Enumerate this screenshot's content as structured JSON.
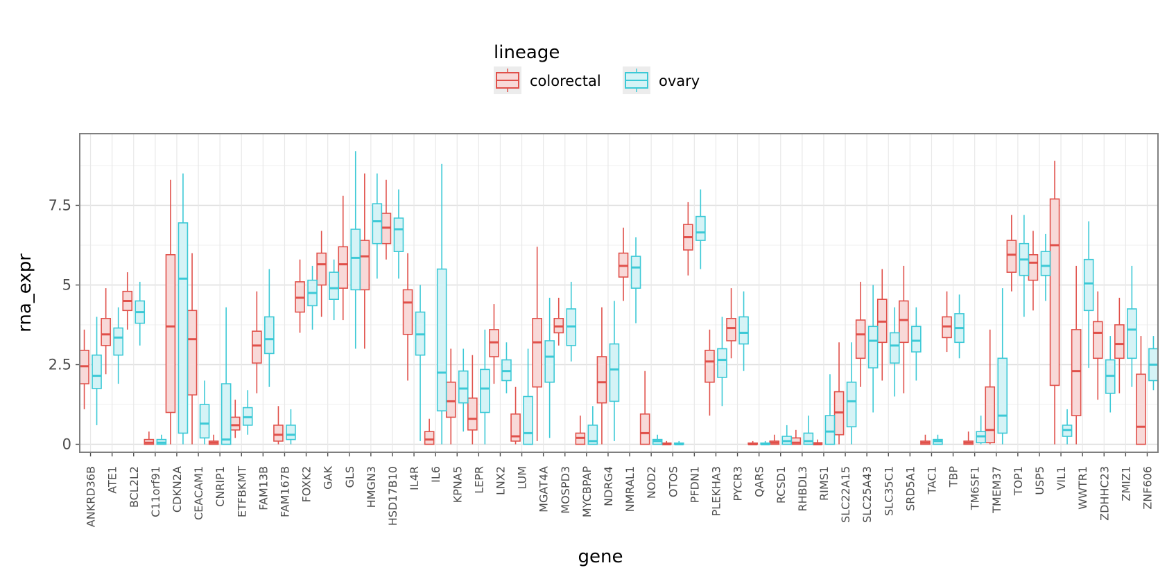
{
  "chart_data": {
    "type": "boxplot",
    "xlabel": "gene",
    "ylabel": "rna_expr",
    "ylim": [
      -0.25,
      9.75
    ],
    "yticks": [
      0,
      2.5,
      5,
      7.5
    ],
    "ytick_labels": [
      "0",
      "2.5",
      "5",
      "7.5"
    ],
    "grid": true,
    "legend_position": "top",
    "legend": {
      "title": "lineage",
      "items": [
        {
          "label": "colorectal",
          "color": "#e0504a"
        },
        {
          "label": "ovary",
          "color": "#3cc9d6"
        }
      ]
    },
    "categories": [
      "ANKRD36B",
      "ATE1",
      "BCL2L2",
      "C11orf91",
      "CDKN2A",
      "CEACAM1",
      "CNRIP1",
      "ETFBKMT",
      "FAM13B",
      "FAM167B",
      "FOXK2",
      "GAK",
      "GLS",
      "HMGN3",
      "HSD17B10",
      "IL4R",
      "IL6",
      "KPNA5",
      "LEPR",
      "LNX2",
      "LUM",
      "MGAT4A",
      "MOSPD3",
      "MYCBPAP",
      "NDRG4",
      "NMRAL1",
      "NOD2",
      "OTOS",
      "PFDN1",
      "PLEKHA3",
      "PYCR3",
      "QARS",
      "RCSD1",
      "RHBDL3",
      "RIMS1",
      "SLC22A15",
      "SLC25A43",
      "SLC35C1",
      "SRD5A1",
      "TAC1",
      "TBP",
      "TM6SF1",
      "TMEM37",
      "TOP1",
      "USP5",
      "VIL1",
      "WWTR1",
      "ZDHHC23",
      "ZMIZ1",
      "ZNF606"
    ],
    "series": [
      {
        "name": "colorectal",
        "boxes": [
          [
            1.1,
            1.9,
            2.45,
            2.95,
            3.6
          ],
          [
            2.2,
            3.1,
            3.45,
            3.95,
            4.9
          ],
          [
            3.6,
            4.2,
            4.5,
            4.8,
            5.4
          ],
          [
            0,
            0,
            0.05,
            0.15,
            0.4
          ],
          [
            0,
            1.0,
            3.7,
            5.95,
            8.3
          ],
          [
            0,
            1.55,
            3.3,
            4.2,
            6.0
          ],
          [
            0,
            0,
            0.05,
            0.1,
            0.3
          ],
          [
            0.2,
            0.45,
            0.6,
            0.85,
            1.4
          ],
          [
            1.6,
            2.55,
            3.1,
            3.55,
            4.8
          ],
          [
            0,
            0.1,
            0.3,
            0.6,
            1.2
          ],
          [
            3.5,
            4.15,
            4.6,
            5.1,
            5.8
          ],
          [
            4.0,
            5.0,
            5.65,
            6.0,
            6.7
          ],
          [
            3.9,
            4.9,
            5.65,
            6.2,
            7.8
          ],
          [
            3.0,
            4.85,
            5.9,
            6.4,
            8.5
          ],
          [
            5.8,
            6.3,
            6.8,
            7.25,
            8.3
          ],
          [
            2.0,
            3.45,
            4.45,
            4.85,
            6.0
          ],
          [
            0,
            0,
            0.15,
            0.4,
            0.8
          ],
          [
            0,
            0.85,
            1.35,
            1.95,
            3.0
          ],
          [
            0,
            0.45,
            0.8,
            1.45,
            2.8
          ],
          [
            1.9,
            2.75,
            3.2,
            3.6,
            4.4
          ],
          [
            0,
            0.1,
            0.25,
            0.95,
            1.8
          ],
          [
            0.1,
            1.8,
            3.2,
            3.95,
            6.2
          ],
          [
            3.1,
            3.5,
            3.7,
            3.95,
            4.6
          ],
          [
            0,
            0,
            0.2,
            0.35,
            0.9
          ],
          [
            0,
            1.3,
            1.95,
            2.75,
            4.3
          ],
          [
            4.5,
            5.25,
            5.6,
            6.0,
            6.8
          ],
          [
            0,
            0,
            0.35,
            0.95,
            2.3
          ],
          [
            0,
            0,
            0,
            0.03,
            0.1
          ],
          [
            5.3,
            6.1,
            6.5,
            6.9,
            7.6
          ],
          [
            0.9,
            1.95,
            2.6,
            2.95,
            3.6
          ],
          [
            2.7,
            3.25,
            3.65,
            3.95,
            4.9
          ],
          [
            0,
            0,
            0,
            0.03,
            0.1
          ],
          [
            0,
            0,
            0.05,
            0.1,
            0.3
          ],
          [
            0,
            0,
            0.05,
            0.2,
            0.45
          ],
          [
            0,
            0,
            0,
            0.05,
            0.15
          ],
          [
            0,
            0.3,
            1.0,
            1.65,
            3.2
          ],
          [
            1.8,
            2.7,
            3.45,
            3.9,
            5.1
          ],
          [
            2.0,
            3.2,
            3.85,
            4.55,
            5.5
          ],
          [
            1.6,
            3.2,
            3.9,
            4.5,
            5.6
          ],
          [
            0,
            0,
            0.05,
            0.1,
            0.3
          ],
          [
            2.9,
            3.35,
            3.7,
            4.0,
            4.8
          ],
          [
            0,
            0,
            0.05,
            0.1,
            0.4
          ],
          [
            0,
            0.05,
            0.45,
            1.8,
            3.6
          ],
          [
            4.8,
            5.4,
            5.95,
            6.4,
            7.2
          ],
          [
            4.2,
            5.15,
            5.7,
            5.95,
            6.7
          ],
          [
            0,
            1.85,
            6.25,
            7.7,
            8.9
          ],
          [
            0,
            0.9,
            2.3,
            3.6,
            5.6
          ],
          [
            1.4,
            2.7,
            3.5,
            3.85,
            4.8
          ],
          [
            1.6,
            2.7,
            3.15,
            3.75,
            4.6
          ],
          [
            0,
            0,
            0.55,
            2.2,
            3.4
          ]
        ]
      },
      {
        "name": "ovary",
        "boxes": [
          [
            0.6,
            1.75,
            2.15,
            2.8,
            4.0
          ],
          [
            1.9,
            2.8,
            3.35,
            3.65,
            4.3
          ],
          [
            3.1,
            3.8,
            4.15,
            4.5,
            5.1
          ],
          [
            0,
            0,
            0.05,
            0.15,
            0.3
          ],
          [
            0,
            0.35,
            5.2,
            6.95,
            8.5
          ],
          [
            0,
            0.2,
            0.65,
            1.25,
            2.0
          ],
          [
            0,
            0,
            0.15,
            1.9,
            4.3
          ],
          [
            0.3,
            0.6,
            0.85,
            1.15,
            1.7
          ],
          [
            1.8,
            2.85,
            3.3,
            4.0,
            5.5
          ],
          [
            0,
            0.15,
            0.3,
            0.6,
            1.1
          ],
          [
            3.6,
            4.35,
            4.75,
            5.15,
            5.6
          ],
          [
            3.9,
            4.55,
            4.9,
            5.4,
            5.8
          ],
          [
            3.0,
            4.85,
            5.85,
            6.75,
            9.2
          ],
          [
            5.2,
            6.3,
            7.0,
            7.55,
            8.5
          ],
          [
            5.2,
            6.05,
            6.75,
            7.1,
            8.0
          ],
          [
            0.1,
            2.8,
            3.45,
            4.15,
            5.0
          ],
          [
            0,
            1.05,
            2.25,
            5.5,
            8.8
          ],
          [
            0.4,
            1.3,
            1.75,
            2.3,
            3.0
          ],
          [
            0,
            1.0,
            1.75,
            2.35,
            3.6
          ],
          [
            1.6,
            2.0,
            2.3,
            2.65,
            3.2
          ],
          [
            0,
            0,
            0.35,
            1.5,
            3.0
          ],
          [
            0.2,
            1.95,
            2.75,
            3.25,
            4.6
          ],
          [
            2.6,
            3.1,
            3.7,
            4.25,
            5.1
          ],
          [
            0,
            0,
            0.1,
            0.6,
            1.2
          ],
          [
            0.1,
            1.35,
            2.35,
            3.15,
            4.5
          ],
          [
            3.8,
            4.9,
            5.55,
            5.9,
            6.5
          ],
          [
            0,
            0,
            0.1,
            0.15,
            0.3
          ],
          [
            0,
            0,
            0,
            0.03,
            0.1
          ],
          [
            5.5,
            6.4,
            6.65,
            7.15,
            8.0
          ],
          [
            1.2,
            2.1,
            2.65,
            3.0,
            4.0
          ],
          [
            2.3,
            3.15,
            3.5,
            4.0,
            4.8
          ],
          [
            0,
            0,
            0,
            0.03,
            0.1
          ],
          [
            0,
            0,
            0.1,
            0.25,
            0.6
          ],
          [
            0,
            0,
            0.1,
            0.35,
            0.9
          ],
          [
            0,
            0,
            0.4,
            0.9,
            2.2
          ],
          [
            0,
            0.55,
            1.35,
            1.95,
            3.2
          ],
          [
            1.0,
            2.4,
            3.25,
            3.7,
            5.0
          ],
          [
            1.5,
            2.55,
            3.1,
            3.5,
            4.3
          ],
          [
            2.0,
            2.9,
            3.25,
            3.7,
            4.3
          ],
          [
            0,
            0,
            0.1,
            0.15,
            0.3
          ],
          [
            2.7,
            3.2,
            3.65,
            4.1,
            4.7
          ],
          [
            0,
            0.05,
            0.25,
            0.4,
            0.9
          ],
          [
            0,
            0.35,
            0.9,
            2.7,
            4.9
          ],
          [
            4.0,
            5.3,
            5.8,
            6.3,
            7.2
          ],
          [
            4.5,
            5.3,
            5.6,
            6.05,
            6.6
          ],
          [
            0,
            0.25,
            0.45,
            0.6,
            1.1
          ],
          [
            2.4,
            4.2,
            5.05,
            5.8,
            7.0
          ],
          [
            1.0,
            1.6,
            2.15,
            2.65,
            3.4
          ],
          [
            1.8,
            2.7,
            3.6,
            4.25,
            5.6
          ],
          [
            1.7,
            2.0,
            2.5,
            3.0,
            3.4
          ]
        ]
      }
    ]
  }
}
